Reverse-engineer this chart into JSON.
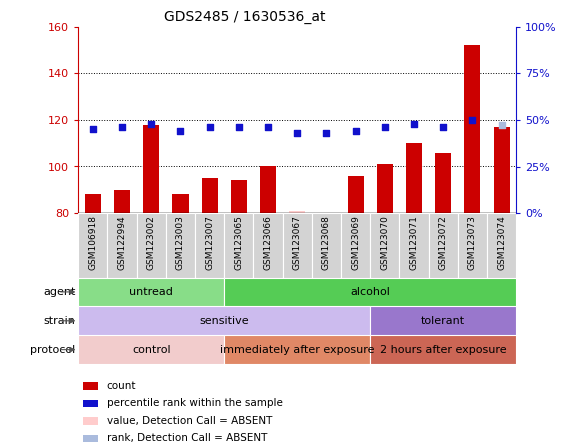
{
  "title": "GDS2485 / 1630536_at",
  "samples": [
    "GSM106918",
    "GSM122994",
    "GSM123002",
    "GSM123003",
    "GSM123007",
    "GSM123065",
    "GSM123066",
    "GSM123067",
    "GSM123068",
    "GSM123069",
    "GSM123070",
    "GSM123071",
    "GSM123072",
    "GSM123073",
    "GSM123074"
  ],
  "count_values": [
    88,
    90,
    118,
    88,
    95,
    94,
    100,
    81,
    80,
    96,
    101,
    110,
    106,
    152,
    117
  ],
  "percentile_values": [
    45,
    46,
    48,
    44,
    46,
    46,
    46,
    43,
    43,
    44,
    46,
    48,
    46,
    50,
    47
  ],
  "absent_count_idx": 7,
  "absent_count_val": 81,
  "absent_rank_idx": 14,
  "absent_rank_val": 47,
  "ylim_left": [
    80,
    160
  ],
  "ylim_right": [
    0,
    100
  ],
  "yticks_left": [
    80,
    100,
    120,
    140,
    160
  ],
  "yticks_right": [
    0,
    25,
    50,
    75,
    100
  ],
  "bar_color": "#cc0000",
  "dot_color": "#1111cc",
  "absent_count_color": "#ffcccc",
  "absent_rank_color": "#aabbdd",
  "bar_width": 0.55,
  "agent_splits": [
    {
      "label": "untread",
      "x0idx": 0,
      "x1idx": 4,
      "color": "#88dd88"
    },
    {
      "label": "alcohol",
      "x0idx": 5,
      "x1idx": 14,
      "color": "#55cc55"
    }
  ],
  "strain_splits": [
    {
      "label": "sensitive",
      "x0idx": 0,
      "x1idx": 9,
      "color": "#ccbbee"
    },
    {
      "label": "tolerant",
      "x0idx": 10,
      "x1idx": 14,
      "color": "#9977cc"
    }
  ],
  "protocol_splits": [
    {
      "label": "control",
      "x0idx": 0,
      "x1idx": 4,
      "color": "#f2cccc"
    },
    {
      "label": "immediately after exposure",
      "x0idx": 5,
      "x1idx": 9,
      "color": "#e08866"
    },
    {
      "label": "2 hours after exposure",
      "x0idx": 10,
      "x1idx": 14,
      "color": "#cc6655"
    }
  ],
  "legend_items": [
    {
      "color": "#cc0000",
      "label": "count"
    },
    {
      "color": "#1111cc",
      "label": "percentile rank within the sample"
    },
    {
      "color": "#ffcccc",
      "label": "value, Detection Call = ABSENT"
    },
    {
      "color": "#aabbdd",
      "label": "rank, Detection Call = ABSENT"
    }
  ]
}
